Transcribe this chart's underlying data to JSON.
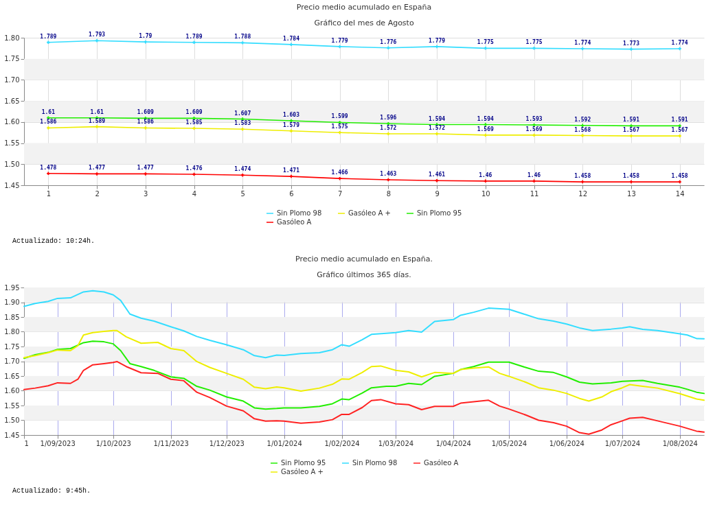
{
  "chart_data": [
    {
      "type": "line",
      "title": "Precio medio acumulado en España",
      "subtitle": "Gráfico del mes de Agosto",
      "categories": [
        "1",
        "2",
        "3",
        "4",
        "5",
        "6",
        "7",
        "8",
        "9",
        "10",
        "11",
        "12",
        "13",
        "14"
      ],
      "series": [
        {
          "name": "Sin Plomo 98",
          "color": "#33ddff",
          "values": [
            1.789,
            1.793,
            1.79,
            1.789,
            1.788,
            1.784,
            1.779,
            1.776,
            1.779,
            1.775,
            1.775,
            1.774,
            1.773,
            1.774
          ]
        },
        {
          "name": "Gasóleo A +",
          "color": "#eeee00",
          "values": [
            1.586,
            1.589,
            1.586,
            1.585,
            1.583,
            1.579,
            1.575,
            1.572,
            1.572,
            1.569,
            1.569,
            1.568,
            1.567,
            1.567
          ]
        },
        {
          "name": "Sin Plomo 95",
          "color": "#22ee00",
          "values": [
            1.61,
            1.61,
            1.609,
            1.609,
            1.607,
            1.603,
            1.599,
            1.596,
            1.594,
            1.594,
            1.593,
            1.592,
            1.591,
            1.591
          ]
        },
        {
          "name": "Gasóleo A",
          "color": "#ff0000",
          "values": [
            1.478,
            1.477,
            1.477,
            1.476,
            1.474,
            1.471,
            1.466,
            1.463,
            1.461,
            1.46,
            1.46,
            1.458,
            1.458,
            1.458
          ]
        }
      ],
      "ylim": [
        1.45,
        1.8
      ],
      "yticks": [
        {
          "value": 1.45,
          "label": "1.45"
        },
        {
          "value": 1.5,
          "label": "1.50"
        },
        {
          "value": 1.55,
          "label": "1.55"
        },
        {
          "value": 1.6,
          "label": "1.60"
        },
        {
          "value": 1.65,
          "label": "1.65"
        },
        {
          "value": 1.7,
          "label": "1.70"
        },
        {
          "value": 1.75,
          "label": "1.75"
        },
        {
          "value": 1.8,
          "label": "1.80"
        }
      ],
      "bands": [
        {
          "axis": "y",
          "from": 1.5,
          "to": 1.55,
          "color": "#f2f2f2"
        },
        {
          "axis": "y",
          "from": 1.6,
          "to": 1.65,
          "color": "#f2f2f2"
        },
        {
          "axis": "y",
          "from": 1.7,
          "to": 1.75,
          "color": "#f2f2f2"
        }
      ],
      "grid": true,
      "legend": "bottom",
      "marker": "cross",
      "data_labels": true,
      "annotations": [
        "Actualizado: 10:24h."
      ]
    },
    {
      "type": "line",
      "title": "Precio medio acumulado en España.",
      "subtitle": "Gráfico últimos 365 días.",
      "series": [
        {
          "name": "Sin Plomo 95",
          "color": "#22ee00",
          "x": [
            "2023-08-14",
            "2023-08-20",
            "2023-08-27",
            "2023-09-01",
            "2023-09-08",
            "2023-09-15",
            "2023-09-20",
            "2023-09-26",
            "2023-10-01",
            "2023-10-05",
            "2023-10-10",
            "2023-10-16",
            "2023-10-23",
            "2023-11-01",
            "2023-11-08",
            "2023-11-15",
            "2023-11-22",
            "2023-12-01",
            "2023-12-10",
            "2023-12-16",
            "2023-12-22",
            "2023-12-28",
            "2024-01-01",
            "2024-01-10",
            "2024-01-20",
            "2024-01-27",
            "2024-02-01",
            "2024-02-05",
            "2024-02-12",
            "2024-02-17",
            "2024-02-25",
            "2024-03-01",
            "2024-03-08",
            "2024-03-15",
            "2024-03-22",
            "2024-04-01",
            "2024-04-05",
            "2024-04-12",
            "2024-04-20",
            "2024-05-01",
            "2024-05-10",
            "2024-05-17",
            "2024-05-25",
            "2024-06-01",
            "2024-06-08",
            "2024-06-15",
            "2024-06-25",
            "2024-07-01",
            "2024-07-05",
            "2024-07-12",
            "2024-07-20",
            "2024-08-01",
            "2024-08-05",
            "2024-08-10",
            "2024-08-14"
          ],
          "values": [
            1.71,
            1.722,
            1.73,
            1.74,
            1.743,
            1.763,
            1.768,
            1.766,
            1.759,
            1.736,
            1.692,
            1.682,
            1.669,
            1.647,
            1.642,
            1.615,
            1.602,
            1.579,
            1.565,
            1.542,
            1.538,
            1.54,
            1.542,
            1.542,
            1.547,
            1.556,
            1.572,
            1.57,
            1.592,
            1.61,
            1.615,
            1.615,
            1.625,
            1.621,
            1.649,
            1.659,
            1.672,
            1.682,
            1.697,
            1.697,
            1.679,
            1.666,
            1.662,
            1.647,
            1.629,
            1.623,
            1.627,
            1.632,
            1.633,
            1.635,
            1.625,
            1.612,
            1.605,
            1.595,
            1.591
          ]
        },
        {
          "name": "Sin Plomo 98",
          "color": "#33ddff",
          "x": [
            "2023-08-14",
            "2023-08-20",
            "2023-08-27",
            "2023-09-01",
            "2023-09-08",
            "2023-09-15",
            "2023-09-20",
            "2023-09-26",
            "2023-10-01",
            "2023-10-05",
            "2023-10-10",
            "2023-10-16",
            "2023-10-23",
            "2023-11-01",
            "2023-11-08",
            "2023-11-15",
            "2023-11-22",
            "2023-12-01",
            "2023-12-10",
            "2023-12-16",
            "2023-12-22",
            "2023-12-28",
            "2024-01-01",
            "2024-01-10",
            "2024-01-20",
            "2024-01-27",
            "2024-02-01",
            "2024-02-05",
            "2024-02-12",
            "2024-02-17",
            "2024-02-25",
            "2024-03-01",
            "2024-03-08",
            "2024-03-15",
            "2024-03-22",
            "2024-04-01",
            "2024-04-05",
            "2024-04-12",
            "2024-04-20",
            "2024-05-01",
            "2024-05-10",
            "2024-05-17",
            "2024-05-25",
            "2024-06-01",
            "2024-06-08",
            "2024-06-15",
            "2024-06-25",
            "2024-07-01",
            "2024-07-05",
            "2024-07-12",
            "2024-07-20",
            "2024-08-01",
            "2024-08-05",
            "2024-08-10",
            "2024-08-14"
          ],
          "values": [
            1.886,
            1.896,
            1.903,
            1.913,
            1.915,
            1.935,
            1.939,
            1.935,
            1.925,
            1.906,
            1.86,
            1.846,
            1.836,
            1.817,
            1.803,
            1.784,
            1.771,
            1.756,
            1.739,
            1.719,
            1.712,
            1.721,
            1.72,
            1.726,
            1.729,
            1.739,
            1.756,
            1.751,
            1.773,
            1.791,
            1.795,
            1.797,
            1.804,
            1.799,
            1.835,
            1.841,
            1.856,
            1.866,
            1.88,
            1.876,
            1.858,
            1.844,
            1.836,
            1.826,
            1.813,
            1.804,
            1.809,
            1.813,
            1.817,
            1.808,
            1.804,
            1.793,
            1.789,
            1.777,
            1.776
          ]
        },
        {
          "name": "Gasóleo A",
          "color": "#ff2222",
          "x": [
            "2023-08-14",
            "2023-08-20",
            "2023-08-27",
            "2023-09-01",
            "2023-09-08",
            "2023-09-12",
            "2023-09-15",
            "2023-09-20",
            "2023-09-26",
            "2023-10-01",
            "2023-10-03",
            "2023-10-08",
            "2023-10-16",
            "2023-10-25",
            "2023-11-01",
            "2023-11-08",
            "2023-11-15",
            "2023-11-22",
            "2023-12-01",
            "2023-12-10",
            "2023-12-16",
            "2023-12-22",
            "2023-12-28",
            "2024-01-01",
            "2024-01-10",
            "2024-01-20",
            "2024-01-27",
            "2024-02-01",
            "2024-02-05",
            "2024-02-12",
            "2024-02-17",
            "2024-02-22",
            "2024-03-01",
            "2024-03-08",
            "2024-03-15",
            "2024-03-22",
            "2024-04-01",
            "2024-04-05",
            "2024-04-12",
            "2024-04-20",
            "2024-04-26",
            "2024-05-01",
            "2024-05-10",
            "2024-05-17",
            "2024-05-25",
            "2024-06-01",
            "2024-06-08",
            "2024-06-13",
            "2024-06-20",
            "2024-06-25",
            "2024-07-01",
            "2024-07-05",
            "2024-07-12",
            "2024-07-20",
            "2024-08-01",
            "2024-08-10",
            "2024-08-14"
          ],
          "values": [
            1.604,
            1.609,
            1.617,
            1.627,
            1.625,
            1.639,
            1.669,
            1.688,
            1.692,
            1.696,
            1.699,
            1.682,
            1.661,
            1.659,
            1.639,
            1.634,
            1.595,
            1.577,
            1.548,
            1.532,
            1.505,
            1.497,
            1.498,
            1.497,
            1.49,
            1.494,
            1.502,
            1.52,
            1.52,
            1.543,
            1.567,
            1.57,
            1.556,
            1.553,
            1.536,
            1.547,
            1.547,
            1.558,
            1.563,
            1.568,
            1.548,
            1.538,
            1.518,
            1.5,
            1.492,
            1.48,
            1.458,
            1.453,
            1.467,
            1.485,
            1.498,
            1.507,
            1.51,
            1.498,
            1.48,
            1.463,
            1.46
          ]
        },
        {
          "name": "Gasóleo A +",
          "color": "#eeee00",
          "x": [
            "2023-08-14",
            "2023-08-20",
            "2023-08-27",
            "2023-09-01",
            "2023-09-08",
            "2023-09-12",
            "2023-09-15",
            "2023-09-20",
            "2023-09-26",
            "2023-10-01",
            "2023-10-03",
            "2023-10-08",
            "2023-10-16",
            "2023-10-25",
            "2023-11-01",
            "2023-11-08",
            "2023-11-15",
            "2023-11-22",
            "2023-12-01",
            "2023-12-10",
            "2023-12-16",
            "2023-12-22",
            "2023-12-28",
            "2024-01-01",
            "2024-01-10",
            "2024-01-20",
            "2024-01-27",
            "2024-02-01",
            "2024-02-05",
            "2024-02-12",
            "2024-02-17",
            "2024-02-22",
            "2024-03-01",
            "2024-03-08",
            "2024-03-15",
            "2024-03-22",
            "2024-04-01",
            "2024-04-05",
            "2024-04-12",
            "2024-04-20",
            "2024-04-26",
            "2024-05-01",
            "2024-05-10",
            "2024-05-17",
            "2024-05-25",
            "2024-06-01",
            "2024-06-08",
            "2024-06-13",
            "2024-06-20",
            "2024-06-25",
            "2024-07-01",
            "2024-07-05",
            "2024-07-12",
            "2024-07-20",
            "2024-08-01",
            "2024-08-10",
            "2024-08-14"
          ],
          "values": [
            1.712,
            1.719,
            1.729,
            1.738,
            1.736,
            1.753,
            1.789,
            1.797,
            1.801,
            1.804,
            1.804,
            1.783,
            1.761,
            1.764,
            1.743,
            1.736,
            1.699,
            1.679,
            1.659,
            1.639,
            1.612,
            1.607,
            1.613,
            1.61,
            1.599,
            1.609,
            1.622,
            1.64,
            1.639,
            1.662,
            1.682,
            1.684,
            1.669,
            1.664,
            1.647,
            1.662,
            1.659,
            1.672,
            1.677,
            1.681,
            1.659,
            1.649,
            1.629,
            1.61,
            1.602,
            1.591,
            1.574,
            1.565,
            1.579,
            1.597,
            1.61,
            1.621,
            1.615,
            1.609,
            1.59,
            1.572,
            1.568
          ]
        }
      ],
      "xlim": [
        "2023-08-14",
        "2024-08-14"
      ],
      "xticks": [
        {
          "value": "2023-08-14",
          "label": "1"
        },
        {
          "value": "2023-09-01",
          "label": "1/09/2023"
        },
        {
          "value": "2023-10-01",
          "label": "1/10/2023"
        },
        {
          "value": "2023-11-01",
          "label": "1/11/2023"
        },
        {
          "value": "2023-12-01",
          "label": "1/12/2023"
        },
        {
          "value": "2024-01-01",
          "label": "1/01/2024"
        },
        {
          "value": "2024-02-01",
          "label": "1/02/2024"
        },
        {
          "value": "2024-03-01",
          "label": "1/03/2024"
        },
        {
          "value": "2024-04-01",
          "label": "1/04/2024"
        },
        {
          "value": "2024-05-01",
          "label": "1/05/2024"
        },
        {
          "value": "2024-06-01",
          "label": "1/06/2024"
        },
        {
          "value": "2024-07-01",
          "label": "1/07/2024"
        },
        {
          "value": "2024-08-01",
          "label": "1/08/2024"
        }
      ],
      "ylim": [
        1.45,
        1.95
      ],
      "yticks": [
        {
          "value": 1.45,
          "label": "1.45"
        },
        {
          "value": 1.5,
          "label": "1.50"
        },
        {
          "value": 1.55,
          "label": "1.55"
        },
        {
          "value": 1.6,
          "label": "1.60"
        },
        {
          "value": 1.65,
          "label": "1.65"
        },
        {
          "value": 1.7,
          "label": "1.70"
        },
        {
          "value": 1.75,
          "label": "1.75"
        },
        {
          "value": 1.8,
          "label": "1.80"
        },
        {
          "value": 1.85,
          "label": "1.85"
        },
        {
          "value": 1.9,
          "label": "1.90"
        },
        {
          "value": 1.95,
          "label": "1.95"
        }
      ],
      "bands": [
        {
          "axis": "y",
          "from": 1.5,
          "to": 1.55,
          "color": "#f2f2f2"
        },
        {
          "axis": "y",
          "from": 1.6,
          "to": 1.65,
          "color": "#f2f2f2"
        },
        {
          "axis": "y",
          "from": 1.7,
          "to": 1.75,
          "color": "#f2f2f2"
        },
        {
          "axis": "y",
          "from": 1.8,
          "to": 1.85,
          "color": "#f2f2f2"
        },
        {
          "axis": "y",
          "from": 1.9,
          "to": 1.95,
          "color": "#f2f2f2"
        }
      ],
      "grid": true,
      "legend": "bottom",
      "annotations": [
        "Actualizado: 9:45h."
      ]
    }
  ]
}
